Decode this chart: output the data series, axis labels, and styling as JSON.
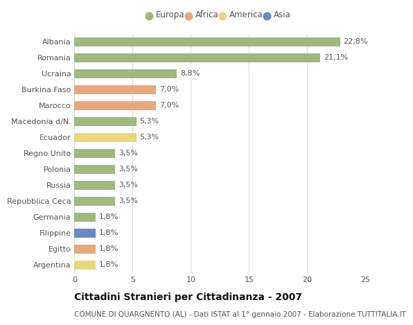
{
  "countries": [
    "Albania",
    "Romania",
    "Ucraina",
    "Burkina Faso",
    "Marocco",
    "Macedonia d/N.",
    "Ecuador",
    "Regno Unito",
    "Polonia",
    "Russia",
    "Repubblica Ceca",
    "Germania",
    "Filippine",
    "Egitto",
    "Argentina"
  ],
  "values": [
    22.8,
    21.1,
    8.8,
    7.0,
    7.0,
    5.3,
    5.3,
    3.5,
    3.5,
    3.5,
    3.5,
    1.8,
    1.8,
    1.8,
    1.8
  ],
  "labels": [
    "22,8%",
    "21,1%",
    "8,8%",
    "7,0%",
    "7,0%",
    "5,3%",
    "5,3%",
    "3,5%",
    "3,5%",
    "3,5%",
    "3,5%",
    "1,8%",
    "1,8%",
    "1,8%",
    "1,8%"
  ],
  "colors": [
    "#9eba7e",
    "#9eba7e",
    "#9eba7e",
    "#e8a87a",
    "#e8a87a",
    "#9eba7e",
    "#e8d87a",
    "#9eba7e",
    "#9eba7e",
    "#9eba7e",
    "#9eba7e",
    "#9eba7e",
    "#6888c8",
    "#e8a87a",
    "#e8d87a"
  ],
  "legend_labels": [
    "Europa",
    "Africa",
    "America",
    "Asia"
  ],
  "legend_colors": [
    "#9eba7e",
    "#e8a87a",
    "#e8d87a",
    "#6888c8"
  ],
  "title": "Cittadini Stranieri per Cittadinanza - 2007",
  "subtitle": "COMUNE DI QUARGNENTO (AL) - Dati ISTAT al 1° gennaio 2007 - Elaborazione TUTTITALIA.IT",
  "xlim": [
    0,
    25
  ],
  "xticks": [
    0,
    5,
    10,
    15,
    20,
    25
  ],
  "background_color": "#ffffff",
  "grid_color": "#e0e0e0",
  "bar_height": 0.55,
  "title_fontsize": 10,
  "subtitle_fontsize": 7.5,
  "tick_fontsize": 8,
  "label_fontsize": 8,
  "legend_fontsize": 8.5
}
